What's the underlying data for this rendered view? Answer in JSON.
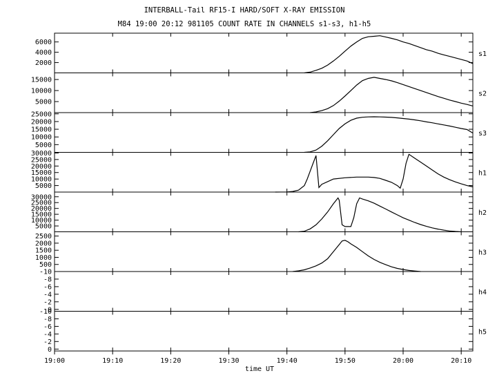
{
  "title": "INTERBALL-Tail RF15-I HARD/SOFT X-RAY EMISSION",
  "subtitle": "M84  19:00 20:12 981105  COUNT RATE IN CHANNELS s1-s3, h1-h5",
  "colors": {
    "line": "#000000",
    "background": "#ffffff"
  },
  "chart_data": {
    "type": "line",
    "title": "INTERBALL-Tail RF15-I HARD/SOFT X-RAY EMISSION",
    "subtitle": "M84  19:00 20:12 981105  COUNT RATE IN CHANNELS s1-s3, h1-h5",
    "xlabel": "time UT",
    "xlim_minutes_after_19_00": [
      0,
      72
    ],
    "xtick_labels": [
      "19:00",
      "19:10",
      "19:20",
      "19:30",
      "19:40",
      "19:50",
      "20:00",
      "20:10"
    ],
    "xtick_positions_min": [
      0,
      10,
      20,
      30,
      40,
      50,
      60,
      70
    ],
    "grid": false,
    "panels": [
      {
        "name": "s1",
        "ylim": [
          0,
          7700
        ],
        "yticks": [
          2000,
          4000,
          6000
        ],
        "series": [
          {
            "name": "s1",
            "x": [
              43,
              44,
              45,
              46,
              47,
              48,
              49,
              50,
              51,
              52,
              53,
              54,
              55,
              56,
              57,
              58,
              59,
              60,
              61,
              62,
              63,
              64,
              65,
              66,
              67,
              68,
              69,
              70,
              71,
              72
            ],
            "values": [
              0,
              150,
              500,
              900,
              1500,
              2300,
              3200,
              4200,
              5200,
              6000,
              6700,
              7000,
              7100,
              7200,
              6950,
              6700,
              6400,
              6000,
              5700,
              5300,
              4900,
              4500,
              4200,
              3800,
              3500,
              3200,
              2900,
              2600,
              2300,
              1800
            ]
          }
        ]
      },
      {
        "name": "s2",
        "ylim": [
          0,
          18000
        ],
        "yticks": [
          5000,
          10000,
          15000
        ],
        "series": [
          {
            "name": "s2",
            "x": [
              44,
              45,
              46,
              47,
              48,
              49,
              50,
              51,
              52,
              53,
              54,
              55,
              56,
              57,
              58,
              59,
              60,
              61,
              62,
              63,
              64,
              65,
              66,
              67,
              68,
              69,
              70,
              71,
              72
            ],
            "values": [
              0,
              300,
              900,
              1800,
              3200,
              5200,
              7500,
              10000,
              12500,
              14500,
              15500,
              16000,
              15500,
              15000,
              14400,
              13600,
              12700,
              11800,
              10900,
              10000,
              9100,
              8200,
              7300,
              6500,
              5700,
              5000,
              4300,
              3700,
              3000
            ]
          }
        ]
      },
      {
        "name": "s3",
        "ylim": [
          0,
          25800
        ],
        "yticks": [
          5000,
          10000,
          15000,
          20000,
          25000
        ],
        "series": [
          {
            "name": "s3",
            "x": [
              43,
              44,
              45,
              46,
              47,
              48,
              49,
              50,
              51,
              52,
              53,
              54,
              55,
              56,
              57,
              58,
              59,
              60,
              61,
              62,
              63,
              64,
              65,
              66,
              67,
              68,
              69,
              70,
              71,
              72
            ],
            "values": [
              0,
              300,
              1500,
              4000,
              7500,
              11500,
              15500,
              18500,
              20800,
              22200,
              22800,
              23000,
              23100,
              23000,
              22900,
              22700,
              22400,
              22000,
              21600,
              21100,
              20500,
              19800,
              19200,
              18500,
              17800,
              17100,
              16300,
              15500,
              14800,
              12500
            ]
          }
        ]
      },
      {
        "name": "h1",
        "ylim": [
          0,
          30500
        ],
        "yticks": [
          5000,
          10000,
          15000,
          20000,
          25000,
          30000
        ],
        "series": [
          {
            "name": "h1",
            "x": [
              38,
              40,
              41,
              42,
              43,
              43.5,
              44,
              44.5,
              45,
              45.5,
              46,
              47,
              48,
              50,
              52,
              54,
              55,
              56,
              57,
              58,
              59,
              59.5,
              60,
              60.5,
              61,
              62,
              63,
              64,
              65,
              66,
              67,
              68,
              69,
              70,
              71,
              72
            ],
            "values": [
              0,
              100,
              500,
              1500,
              5000,
              10000,
              16000,
              22000,
              28000,
              3500,
              6000,
              8000,
              10000,
              11000,
              11500,
              11500,
              11200,
              10500,
              9000,
              7500,
              5000,
              3000,
              10000,
              22000,
              29000,
              26000,
              23000,
              20000,
              17000,
              14000,
              11500,
              9500,
              7800,
              6300,
              5000,
              4000
            ]
          }
        ]
      },
      {
        "name": "h2",
        "ylim": [
          0,
          34000
        ],
        "yticks": [
          5000,
          10000,
          15000,
          20000,
          25000,
          30000
        ],
        "series": [
          {
            "name": "h2",
            "x": [
              42,
              43,
              44,
              45,
              46,
              47,
              48,
              48.8,
              49,
              49.5,
              50,
              51,
              51.5,
              52,
              52.5,
              53,
              54,
              55,
              56,
              57,
              58,
              59,
              60,
              61,
              62,
              63,
              64,
              65,
              66,
              67,
              68,
              69,
              70
            ],
            "values": [
              0,
              500,
              2500,
              6000,
              11000,
              17000,
              24000,
              29000,
              27000,
              6000,
              4500,
              4500,
              12000,
              24000,
              29000,
              28000,
              26500,
              24500,
              22000,
              19500,
              17000,
              14500,
              12000,
              10000,
              8000,
              6200,
              4700,
              3400,
              2300,
              1400,
              700,
              300,
              0
            ]
          }
        ]
      },
      {
        "name": "h3",
        "ylim": [
          0,
          2800
        ],
        "yticks": [
          500,
          1000,
          1500,
          2000,
          2500
        ],
        "series": [
          {
            "name": "h3",
            "x": [
              41,
              42,
              43,
              44,
              45,
              46,
              47,
              48,
              49,
              49.5,
              50,
              50.5,
              51,
              52,
              53,
              54,
              55,
              56,
              57,
              58,
              59,
              60,
              61,
              62,
              63
            ],
            "values": [
              0,
              50,
              120,
              250,
              400,
              600,
              900,
              1400,
              1900,
              2150,
              2200,
              2100,
              1950,
              1700,
              1400,
              1100,
              850,
              650,
              480,
              330,
              220,
              140,
              80,
              40,
              0
            ]
          }
        ]
      },
      {
        "name": "h4",
        "ylim": [
          -0.5,
          10
        ],
        "yticks": [
          0,
          2,
          4,
          6,
          8,
          10
        ],
        "ytick_labels": [
          "0",
          "-2",
          "-4",
          "-6",
          "-8",
          "-10"
        ],
        "series": []
      },
      {
        "name": "h5",
        "ylim": [
          -0.5,
          10
        ],
        "yticks": [
          0,
          2,
          4,
          6,
          8,
          10
        ],
        "ytick_labels": [
          "0",
          "-2",
          "-4",
          "-6",
          "-8",
          "-10"
        ],
        "series": []
      }
    ]
  }
}
